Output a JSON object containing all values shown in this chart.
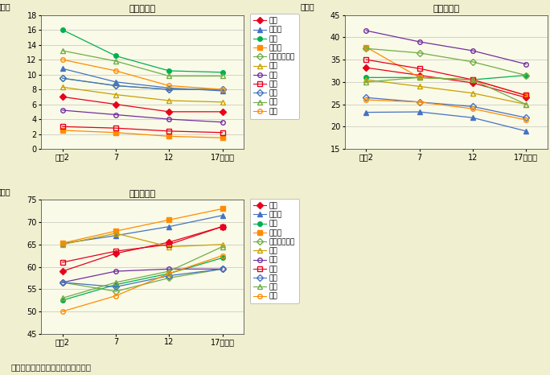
{
  "title1": "第一次産業",
  "title2": "第二次産業",
  "title3": "第三次産業",
  "caption": "資料）総務省「国勢調査」より作成",
  "ylabel": "（％）",
  "x_labels": [
    "平成2",
    "7",
    "12",
    "17（年）"
  ],
  "x_ticks": [
    0,
    1,
    2,
    3
  ],
  "background_color": "#f0f0d0",
  "plot_bg_color": "#fafae8",
  "legend_entries": [
    "全国",
    "北海道",
    "東北",
    "南関東",
    "北関東・甲信",
    "北陸",
    "東海",
    "近畑",
    "中国",
    "四国",
    "九州"
  ],
  "series_styles": [
    {
      "color": "#e8001c",
      "marker": "D",
      "filled": true,
      "msize": 5
    },
    {
      "color": "#4472c4",
      "marker": "^",
      "filled": true,
      "msize": 5
    },
    {
      "color": "#00b050",
      "marker": "o",
      "filled": true,
      "msize": 5
    },
    {
      "color": "#ff8c00",
      "marker": "s",
      "filled": true,
      "msize": 5
    },
    {
      "color": "#70ad47",
      "marker": "D",
      "filled": false,
      "msize": 5
    },
    {
      "color": "#c8a000",
      "marker": "^",
      "filled": false,
      "msize": 5
    },
    {
      "color": "#7030a0",
      "marker": "o",
      "filled": false,
      "msize": 5
    },
    {
      "color": "#e8001c",
      "marker": "s",
      "filled": false,
      "msize": 5
    },
    {
      "color": "#4472c4",
      "marker": "D",
      "filled": false,
      "msize": 5
    },
    {
      "color": "#70ad47",
      "marker": "^",
      "filled": false,
      "msize": 5
    },
    {
      "color": "#ff8c00",
      "marker": "o",
      "filled": false,
      "msize": 5
    }
  ],
  "data1": [
    [
      7.0,
      6.0,
      5.0,
      5.0
    ],
    [
      10.8,
      9.0,
      8.2,
      7.8
    ],
    [
      16.0,
      12.5,
      10.5,
      10.3
    ],
    [
      2.5,
      2.2,
      1.7,
      1.5
    ],
    [
      9.5,
      8.5,
      8.0,
      8.0
    ],
    [
      8.3,
      7.3,
      6.5,
      6.3
    ],
    [
      5.2,
      4.6,
      4.0,
      3.6
    ],
    [
      3.0,
      2.8,
      2.4,
      2.2
    ],
    [
      9.5,
      8.5,
      8.0,
      8.0
    ],
    [
      13.2,
      11.8,
      9.8,
      9.8
    ],
    [
      12.0,
      10.5,
      8.5,
      8.0
    ]
  ],
  "data2": [
    [
      33.2,
      31.5,
      29.8,
      26.5
    ],
    [
      23.2,
      23.3,
      22.0,
      19.0
    ],
    [
      31.0,
      31.0,
      30.5,
      31.5
    ],
    [
      37.8,
      31.0,
      30.5,
      27.0
    ],
    [
      37.5,
      36.5,
      34.5,
      31.5
    ],
    [
      30.5,
      29.0,
      27.5,
      25.0
    ],
    [
      41.5,
      39.0,
      37.0,
      34.0
    ],
    [
      35.0,
      33.0,
      30.5,
      27.0
    ],
    [
      26.5,
      25.5,
      24.5,
      22.0
    ],
    [
      30.0,
      31.0,
      30.5,
      25.0
    ],
    [
      26.0,
      25.5,
      24.0,
      21.5
    ]
  ],
  "data3": [
    [
      59.0,
      63.0,
      65.5,
      69.0
    ],
    [
      65.2,
      67.0,
      69.0,
      71.5
    ],
    [
      52.5,
      56.0,
      58.5,
      62.0
    ],
    [
      65.3,
      68.0,
      70.5,
      73.0
    ],
    [
      56.5,
      54.5,
      57.5,
      59.5
    ],
    [
      65.0,
      67.5,
      64.5,
      65.0
    ],
    [
      56.5,
      59.0,
      59.5,
      59.5
    ],
    [
      61.0,
      63.5,
      65.0,
      69.0
    ],
    [
      56.5,
      55.5,
      58.0,
      59.5
    ],
    [
      53.0,
      56.5,
      59.0,
      64.5
    ],
    [
      50.0,
      53.5,
      58.5,
      62.5
    ]
  ],
  "ylim1": [
    0,
    18
  ],
  "ylim2": [
    15,
    45
  ],
  "ylim3": [
    45,
    75
  ],
  "yticks1": [
    0,
    2,
    4,
    6,
    8,
    10,
    12,
    14,
    16,
    18
  ],
  "yticks2": [
    15,
    20,
    25,
    30,
    35,
    40,
    45
  ],
  "yticks3": [
    45,
    50,
    55,
    60,
    65,
    70,
    75
  ]
}
